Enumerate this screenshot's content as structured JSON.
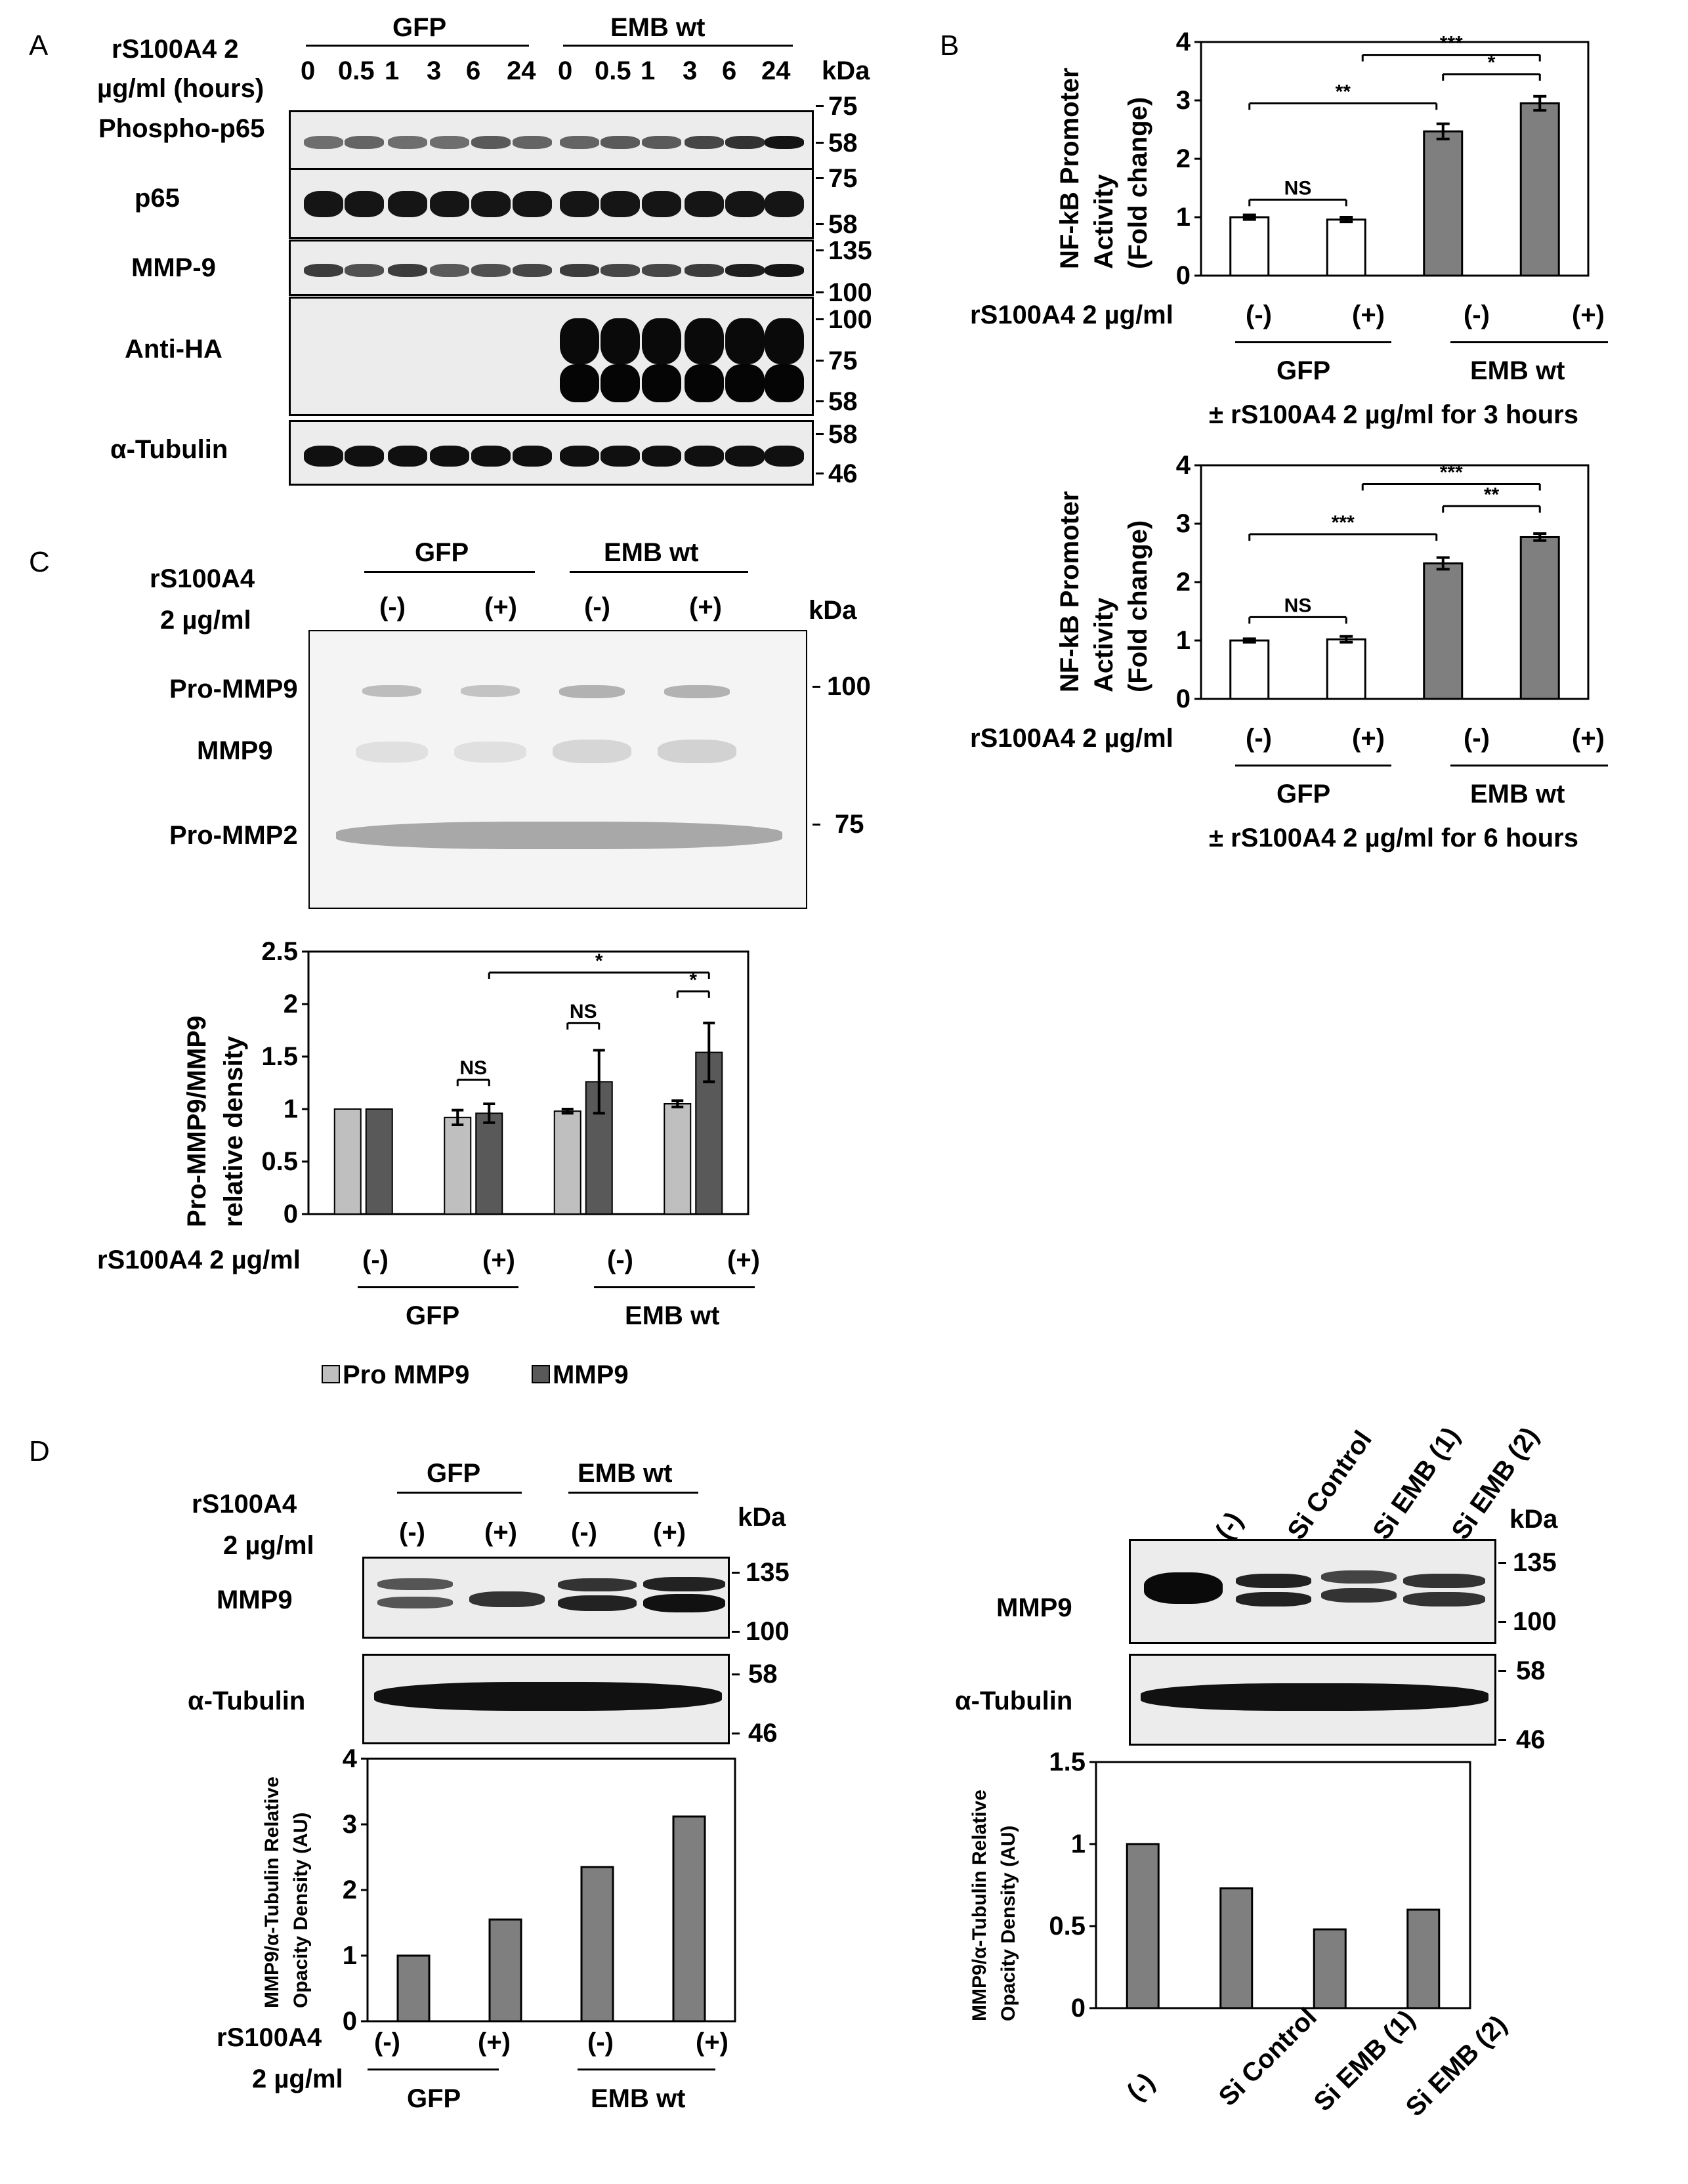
{
  "panels": {
    "A": "A",
    "B": "B",
    "C": "C",
    "D": "D"
  },
  "panelA": {
    "treat_label_1": "rS100A4 2",
    "treat_label_2": "µg/ml (hours)",
    "group_gfp": "GFP",
    "group_emb": "EMB wt",
    "times": [
      "0",
      "0.5",
      "1",
      "3",
      "6",
      "24",
      "0",
      "0.5",
      "1",
      "3",
      "6",
      "24"
    ],
    "kda": "kDa",
    "rows": [
      {
        "label": "Phospho-p65",
        "markers": [
          "75",
          "58"
        ]
      },
      {
        "label": "p65",
        "markers": [
          "75",
          "58"
        ]
      },
      {
        "label": "MMP-9",
        "markers": [
          "135",
          "100"
        ]
      },
      {
        "label": "Anti-HA",
        "markers": [
          "100",
          "75",
          "58"
        ]
      },
      {
        "label": "α-Tubulin",
        "markers": [
          "58",
          "46"
        ]
      }
    ]
  },
  "panelB": {
    "charts": [
      {
        "ylabel_lines": [
          "NF-kB Promoter",
          "Activity",
          "(Fold change)"
        ],
        "treat_label": "rS100A4 2 µg/ml",
        "signs": [
          "(-)",
          "(+)",
          "(-)",
          "(+)"
        ],
        "groups": [
          "GFP",
          "EMB wt"
        ],
        "caption": "± rS100A4 2 µg/ml for 3 hours",
        "sig": [
          "NS",
          "**",
          "*",
          "***"
        ]
      },
      {
        "ylabel_lines": [
          "NF-kB Promoter",
          "Activity",
          "(Fold change)"
        ],
        "treat_label": "rS100A4 2 µg/ml",
        "signs": [
          "(-)",
          "(+)",
          "(-)",
          "(+)"
        ],
        "groups": [
          "GFP",
          "EMB wt"
        ],
        "caption": "± rS100A4 2 µg/ml for 6 hours",
        "sig": [
          "NS",
          "***",
          "**",
          "***"
        ]
      }
    ]
  },
  "panelC": {
    "treat_label_1": "rS100A4",
    "treat_label_2": "2 µg/ml",
    "groups": [
      "GFP",
      "EMB wt"
    ],
    "signs": [
      "(-)",
      "(+)",
      "(-)",
      "(+)"
    ],
    "kda": "kDa",
    "bands": [
      "Pro-MMP9",
      "MMP9",
      "Pro-MMP2"
    ],
    "markers": [
      "100",
      "75"
    ],
    "ylabel_lines": [
      "Pro-MMP9/MMP9",
      "relative density"
    ],
    "treat_label": "rS100A4 2 µg/ml",
    "legend": [
      "Pro MMP9",
      "MMP9"
    ],
    "sig": [
      "NS",
      "NS",
      "*",
      "*"
    ]
  },
  "panelD_left": {
    "treat_label_1": "rS100A4",
    "treat_label_2": "2 µg/ml",
    "groups": [
      "GFP",
      "EMB wt"
    ],
    "signs": [
      "(-)",
      "(+)",
      "(-)",
      "(+)"
    ],
    "kda": "kDa",
    "rows": [
      {
        "label": "MMP9",
        "markers": [
          "135",
          "100"
        ]
      },
      {
        "label": "α-Tubulin",
        "markers": [
          "58",
          "46"
        ]
      }
    ],
    "ylabel_lines": [
      "MMP9/α-Tubulin Relative",
      "Opacity Density (AU)"
    ],
    "treat_label_1b": "rS100A4",
    "treat_label_2b": "2 µg/ml"
  },
  "panelD_right": {
    "lanes": [
      "(-)",
      "Si Control",
      "Si EMB (1)",
      "Si EMB (2)"
    ],
    "kda": "kDa",
    "rows": [
      {
        "label": "MMP9",
        "markers": [
          "135",
          "100"
        ]
      },
      {
        "label": "α-Tubulin",
        "markers": [
          "58",
          "46"
        ]
      }
    ],
    "ylabel_lines": [
      "MMP9/α-Tubulin Relative",
      "Opacity Density (AU)"
    ]
  },
  "chart_data": [
    {
      "type": "bar",
      "categories": [
        "GFP (-)",
        "GFP (+)",
        "EMB wt (-)",
        "EMB wt (+)"
      ],
      "values": [
        1.0,
        0.96,
        2.47,
        2.95
      ],
      "errors": [
        0.04,
        0.04,
        0.13,
        0.12
      ],
      "ylim": [
        0,
        4
      ],
      "yticks": [
        "0",
        "1",
        "2",
        "3",
        "4"
      ],
      "colors": [
        "#ffffff",
        "#ffffff",
        "#7f7f7f",
        "#7f7f7f"
      ]
    },
    {
      "type": "bar",
      "categories": [
        "GFP (-)",
        "GFP (+)",
        "EMB wt (-)",
        "EMB wt (+)"
      ],
      "values": [
        1.0,
        1.02,
        2.32,
        2.77
      ],
      "errors": [
        0.03,
        0.05,
        0.1,
        0.06
      ],
      "ylim": [
        0,
        4
      ],
      "yticks": [
        "0",
        "1",
        "2",
        "3",
        "4"
      ],
      "colors": [
        "#ffffff",
        "#ffffff",
        "#7f7f7f",
        "#7f7f7f"
      ]
    },
    {
      "type": "bar",
      "categories": [
        "GFP (-)",
        "GFP (+)",
        "EMB wt (-)",
        "EMB wt (+)"
      ],
      "series": [
        {
          "name": "Pro MMP9",
          "values": [
            1.0,
            0.92,
            0.98,
            1.05
          ],
          "errors": [
            0,
            0.07,
            0.02,
            0.03
          ],
          "color": "#bfbfbf"
        },
        {
          "name": "MMP9",
          "values": [
            1.0,
            0.96,
            1.26,
            1.54
          ],
          "errors": [
            0,
            0.09,
            0.3,
            0.28
          ],
          "color": "#595959"
        }
      ],
      "ylim": [
        0,
        2.5
      ],
      "yticks": [
        "0",
        "0.5",
        "1",
        "1.5",
        "2",
        "2.5"
      ]
    },
    {
      "type": "bar",
      "categories": [
        "GFP (-)",
        "GFP (+)",
        "EMB wt (-)",
        "EMB wt (+)"
      ],
      "values": [
        1.0,
        1.55,
        2.35,
        3.12
      ],
      "ylim": [
        0,
        4
      ],
      "yticks": [
        "0",
        "1",
        "2",
        "3",
        "4"
      ],
      "colors": [
        "#7f7f7f",
        "#7f7f7f",
        "#7f7f7f",
        "#7f7f7f"
      ]
    },
    {
      "type": "bar",
      "categories": [
        "(-)",
        "Si Control",
        "Si EMB (1)",
        "Si EMB (2)"
      ],
      "values": [
        1.0,
        0.73,
        0.48,
        0.6
      ],
      "ylim": [
        0,
        1.5
      ],
      "yticks": [
        "0",
        "0.5",
        "1",
        "1.5"
      ],
      "colors": [
        "#7f7f7f",
        "#7f7f7f",
        "#7f7f7f",
        "#7f7f7f"
      ]
    }
  ]
}
